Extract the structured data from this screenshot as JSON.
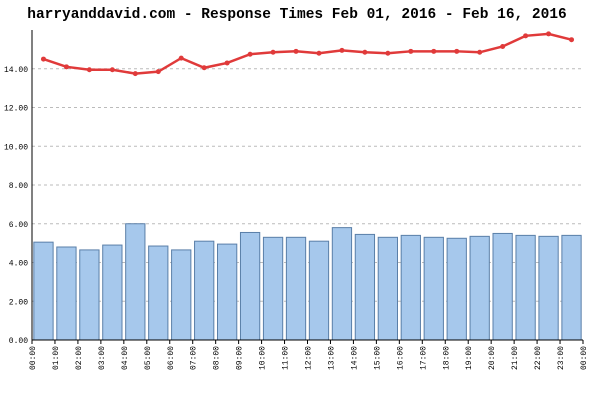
{
  "chart_data": {
    "type": "bar_line",
    "title": "harryanddavid.com - Response Times Feb 01, 2016 - Feb 16, 2016",
    "xticks": [
      "00:00",
      "01:00",
      "02:00",
      "03:00",
      "04:00",
      "05:00",
      "06:00",
      "07:00",
      "08:00",
      "09:00",
      "10:00",
      "11:00",
      "12:00",
      "13:00",
      "14:00",
      "15:00",
      "16:00",
      "17:00",
      "18:00",
      "19:00",
      "20:00",
      "21:00",
      "22:00",
      "23:00",
      "00:00"
    ],
    "series": [
      {
        "type": "bar",
        "color": "#a6c8ec",
        "values": [
          5.05,
          4.8,
          4.65,
          4.9,
          6.0,
          4.85,
          4.65,
          5.1,
          4.95,
          5.55,
          5.3,
          5.3,
          5.1,
          5.8,
          5.45,
          5.3,
          5.4,
          5.3,
          5.25,
          5.35,
          5.5,
          5.4,
          5.35,
          5.4
        ]
      },
      {
        "type": "line",
        "color": "#e03a3a",
        "values": [
          14.5,
          14.1,
          13.95,
          13.95,
          13.75,
          13.85,
          14.55,
          14.05,
          14.3,
          14.75,
          14.85,
          14.9,
          14.8,
          14.95,
          14.85,
          14.8,
          14.9,
          14.9,
          14.9,
          14.85,
          15.15,
          15.7,
          15.8,
          15.5
        ]
      }
    ],
    "ylim": [
      0,
      16
    ],
    "yticks": [
      {
        "value": 0,
        "label": "0.00"
      },
      {
        "value": 2,
        "label": "2.00"
      },
      {
        "value": 4,
        "label": "4.00"
      },
      {
        "value": 6,
        "label": "6.00"
      },
      {
        "value": 8,
        "label": "8.00"
      },
      {
        "value": 10,
        "label": "10.00"
      },
      {
        "value": 12,
        "label": "12.00"
      },
      {
        "value": 14,
        "label": "14.00"
      }
    ],
    "grid": true
  }
}
